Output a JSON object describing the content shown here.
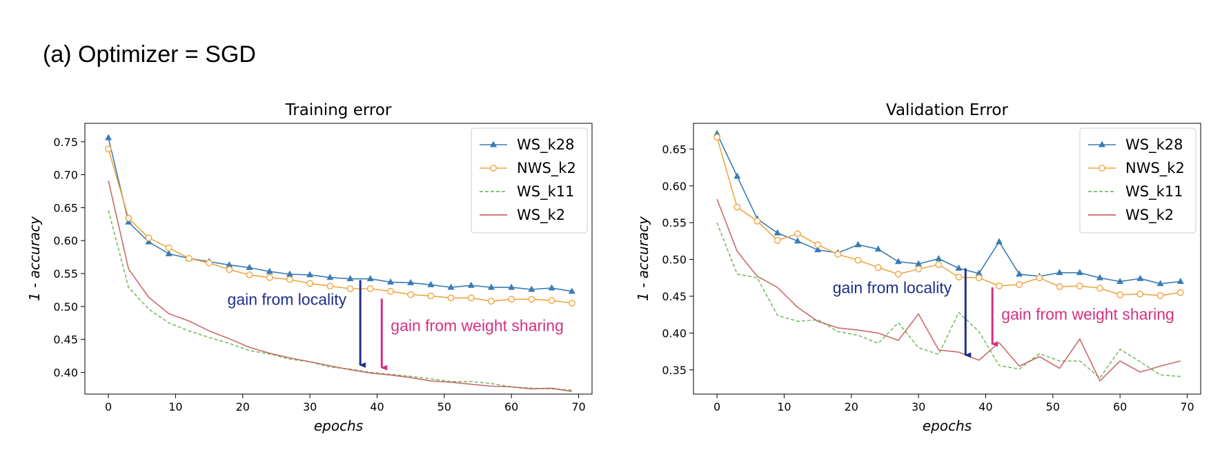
{
  "figure": {
    "title": "(a) Optimizer = SGD"
  },
  "colors": {
    "WS_k28": "#3a7bb4",
    "NWS_k2": "#f0a43e",
    "WS_k11": "#5fae4a",
    "WS_k2": "#c0504d",
    "locality_arrow": "#1f2f8a",
    "sharing_arrow": "#d4317f"
  },
  "chart_data": [
    {
      "type": "line",
      "title": "Training error",
      "xlabel": "epochs",
      "ylabel": "1 - accuracy",
      "xlim": [
        -3.5,
        72
      ],
      "ylim": [
        0.367,
        0.778
      ],
      "xticks": [
        0,
        10,
        20,
        30,
        40,
        50,
        60,
        70
      ],
      "xtick_labels": [
        "0",
        "10",
        "20",
        "30",
        "40",
        "50",
        "60",
        "70"
      ],
      "yticks": [
        0.4,
        0.45,
        0.5,
        0.55,
        0.6,
        0.65,
        0.7,
        0.75
      ],
      "ytick_labels": [
        "0.40",
        "0.45",
        "0.50",
        "0.55",
        "0.60",
        "0.65",
        "0.70",
        "0.75"
      ],
      "grid": false,
      "legend_position": "top-right",
      "series": [
        {
          "name": "WS_k28",
          "style": "line-triangle",
          "x": [
            0,
            3,
            6,
            9,
            12,
            15,
            18,
            21,
            24,
            27,
            30,
            33,
            36,
            39,
            42,
            45,
            48,
            51,
            54,
            57,
            60,
            63,
            66,
            69
          ],
          "y": [
            0.756,
            0.628,
            0.598,
            0.58,
            0.573,
            0.568,
            0.563,
            0.559,
            0.553,
            0.549,
            0.548,
            0.544,
            0.542,
            0.542,
            0.537,
            0.536,
            0.533,
            0.529,
            0.532,
            0.529,
            0.529,
            0.526,
            0.528,
            0.523
          ]
        },
        {
          "name": "NWS_k2",
          "style": "line-circle",
          "x": [
            0,
            3,
            6,
            9,
            12,
            15,
            18,
            21,
            24,
            27,
            30,
            33,
            36,
            39,
            42,
            45,
            48,
            51,
            54,
            57,
            60,
            63,
            66,
            69
          ],
          "y": [
            0.739,
            0.634,
            0.604,
            0.589,
            0.573,
            0.566,
            0.556,
            0.548,
            0.544,
            0.541,
            0.535,
            0.531,
            0.527,
            0.527,
            0.523,
            0.518,
            0.516,
            0.513,
            0.513,
            0.508,
            0.511,
            0.511,
            0.509,
            0.505
          ]
        },
        {
          "name": "WS_k11",
          "style": "dashed",
          "x": [
            0,
            3,
            6,
            9,
            12,
            15,
            18,
            21,
            24,
            27,
            30,
            33,
            36,
            39,
            42,
            45,
            48,
            51,
            54,
            57,
            60,
            63,
            66,
            69
          ],
          "y": [
            0.646,
            0.529,
            0.496,
            0.475,
            0.463,
            0.453,
            0.444,
            0.433,
            0.428,
            0.42,
            0.416,
            0.408,
            0.405,
            0.4,
            0.397,
            0.394,
            0.39,
            0.386,
            0.386,
            0.383,
            0.378,
            0.376,
            0.375,
            0.373
          ]
        },
        {
          "name": "WS_k2",
          "style": "solid",
          "x": [
            0,
            3,
            6,
            9,
            12,
            15,
            18,
            21,
            24,
            27,
            30,
            33,
            36,
            39,
            42,
            45,
            48,
            51,
            54,
            57,
            60,
            63,
            66,
            69
          ],
          "y": [
            0.691,
            0.557,
            0.514,
            0.489,
            0.478,
            0.463,
            0.451,
            0.438,
            0.429,
            0.422,
            0.416,
            0.41,
            0.404,
            0.399,
            0.396,
            0.392,
            0.387,
            0.385,
            0.382,
            0.379,
            0.378,
            0.375,
            0.376,
            0.371
          ]
        }
      ]
    },
    {
      "type": "line",
      "title": "Validation Error",
      "xlabel": "epochs",
      "ylabel": "1 - accuracy",
      "xlim": [
        -3.5,
        72
      ],
      "ylim": [
        0.317,
        0.685
      ],
      "xticks": [
        0,
        10,
        20,
        30,
        40,
        50,
        60,
        70
      ],
      "xtick_labels": [
        "0",
        "10",
        "20",
        "30",
        "40",
        "50",
        "60",
        "70"
      ],
      "yticks": [
        0.35,
        0.4,
        0.45,
        0.5,
        0.55,
        0.6,
        0.65
      ],
      "ytick_labels": [
        "0.35",
        "0.40",
        "0.45",
        "0.50",
        "0.55",
        "0.60",
        "0.65"
      ],
      "grid": false,
      "legend_position": "top-right",
      "series": [
        {
          "name": "WS_k28",
          "style": "line-triangle",
          "x": [
            0,
            3,
            6,
            9,
            12,
            15,
            18,
            21,
            24,
            27,
            30,
            33,
            36,
            39,
            42,
            45,
            48,
            51,
            54,
            57,
            60,
            63,
            66,
            69
          ],
          "y": [
            0.671,
            0.613,
            0.555,
            0.536,
            0.525,
            0.513,
            0.509,
            0.52,
            0.514,
            0.497,
            0.494,
            0.501,
            0.488,
            0.481,
            0.524,
            0.48,
            0.477,
            0.482,
            0.482,
            0.475,
            0.47,
            0.474,
            0.467,
            0.47
          ]
        },
        {
          "name": "NWS_k2",
          "style": "line-circle",
          "x": [
            0,
            3,
            6,
            9,
            12,
            15,
            18,
            21,
            24,
            27,
            30,
            33,
            36,
            39,
            42,
            45,
            48,
            51,
            54,
            57,
            60,
            63,
            66,
            69
          ],
          "y": [
            0.666,
            0.571,
            0.552,
            0.526,
            0.535,
            0.52,
            0.507,
            0.499,
            0.489,
            0.48,
            0.487,
            0.493,
            0.476,
            0.475,
            0.464,
            0.466,
            0.475,
            0.463,
            0.464,
            0.461,
            0.452,
            0.453,
            0.451,
            0.455
          ]
        },
        {
          "name": "WS_k11",
          "style": "dashed",
          "x": [
            0,
            3,
            6,
            9,
            12,
            15,
            18,
            21,
            24,
            27,
            30,
            33,
            36,
            39,
            42,
            45,
            48,
            51,
            54,
            57,
            60,
            63,
            66,
            69
          ],
          "y": [
            0.55,
            0.48,
            0.475,
            0.424,
            0.416,
            0.418,
            0.402,
            0.397,
            0.386,
            0.414,
            0.38,
            0.371,
            0.428,
            0.402,
            0.356,
            0.351,
            0.372,
            0.362,
            0.362,
            0.339,
            0.378,
            0.361,
            0.343,
            0.341
          ]
        },
        {
          "name": "WS_k2",
          "style": "solid",
          "x": [
            0,
            3,
            6,
            9,
            12,
            15,
            18,
            21,
            24,
            27,
            30,
            33,
            36,
            39,
            42,
            45,
            48,
            51,
            54,
            57,
            60,
            63,
            66,
            69
          ],
          "y": [
            0.582,
            0.511,
            0.477,
            0.462,
            0.435,
            0.416,
            0.407,
            0.404,
            0.4,
            0.39,
            0.426,
            0.377,
            0.374,
            0.363,
            0.387,
            0.355,
            0.368,
            0.352,
            0.392,
            0.335,
            0.362,
            0.347,
            0.355,
            0.362
          ]
        }
      ]
    }
  ],
  "annotations": [
    {
      "panel": 0,
      "text": "gain from locality",
      "color_key": "locality_arrow",
      "arrow_x": 37.5,
      "y_from": 0.54,
      "y_to": 0.411
    },
    {
      "panel": 0,
      "text": "gain from weight sharing",
      "color_key": "sharing_arrow",
      "arrow_x": 40.7,
      "y_from": 0.512,
      "y_to": 0.407
    },
    {
      "panel": 1,
      "text": "gain from locality",
      "color_key": "locality_arrow",
      "arrow_x": 37.0,
      "y_from": 0.488,
      "y_to": 0.37
    },
    {
      "panel": 1,
      "text": "gain from weight sharing",
      "color_key": "sharing_arrow",
      "arrow_x": 41.0,
      "y_from": 0.462,
      "y_to": 0.385
    }
  ]
}
